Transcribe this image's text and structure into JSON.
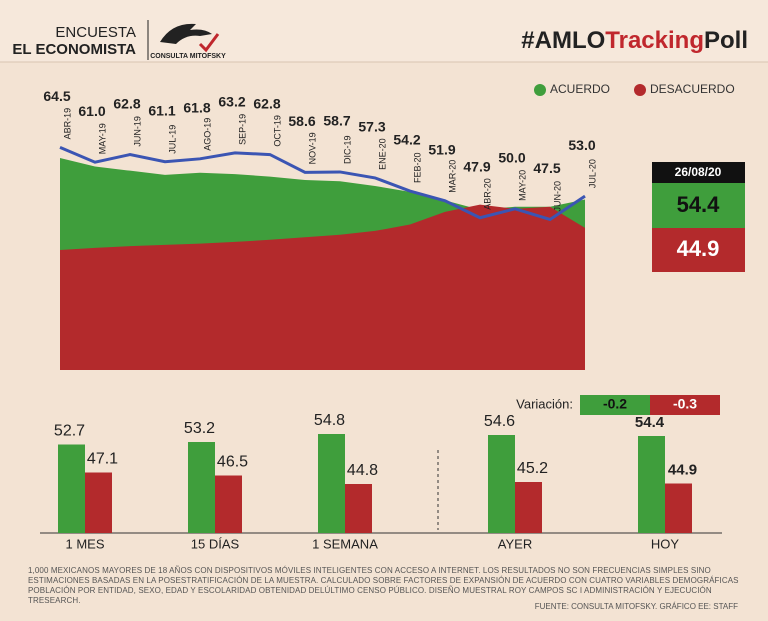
{
  "header": {
    "survey": "ENCUESTA",
    "outlet": "EL ECONOMISTA",
    "pollster": "CONSULTA MITOFSKY",
    "hashtag_prefix": "#AMLO",
    "hashtag_mid": "Tracking",
    "hashtag_suffix": "Poll"
  },
  "chart_data": [
    {
      "type": "area",
      "categories": [
        "ABR-19",
        "MAY-19",
        "JUN-19",
        "JUL-19",
        "AGO-19",
        "SEP-19",
        "OCT-19",
        "NOV-19",
        "DIC-19",
        "ENE-20",
        "FEB-20",
        "MAR-20",
        "ABR-20",
        "MAY-20",
        "JUN-20",
        "JUL-20"
      ],
      "series": [
        {
          "name": "ACUERDO",
          "color": "#3f9e3c",
          "values": [
            62,
            60,
            59,
            58,
            58.5,
            58.2,
            57.6,
            56.8,
            56.5,
            55.4,
            54,
            52,
            49.8,
            50.5,
            50.5,
            52.2
          ]
        },
        {
          "name": "DESACUERDO",
          "color": "#b32a2c",
          "values": [
            40.3,
            40.8,
            41.2,
            41.5,
            41.8,
            42.2,
            42.7,
            43.3,
            43.9,
            44.8,
            46.3,
            49.3,
            51,
            50,
            50.5,
            45.5
          ]
        }
      ],
      "trend": {
        "color": "#3b55b3",
        "values": [
          64.5,
          61.0,
          62.8,
          61.1,
          61.8,
          63.2,
          62.8,
          58.6,
          58.7,
          57.3,
          54.2,
          51.9,
          47.9,
          50.0,
          47.5,
          53.0
        ],
        "value_labels": [
          "64.5",
          "61.0",
          "62.8",
          "61.1",
          "61.8",
          "63.2",
          "62.8",
          "58.6",
          "58.7",
          "57.3",
          "54.2",
          "51.9",
          "47.9",
          "50.0",
          "47.5",
          "53.0"
        ]
      },
      "ylim": [
        12,
        66
      ],
      "current": {
        "date": "26/08/20",
        "acuerdo": 54.4,
        "desacuerdo": 44.9
      }
    },
    {
      "type": "bar",
      "categories": [
        "1 MES",
        "15 DÍAS",
        "1 SEMANA",
        "AYER",
        "HOY"
      ],
      "series": [
        {
          "name": "ACUERDO",
          "color": "#3f9e3c",
          "values": [
            52.7,
            53.2,
            54.8,
            54.6,
            54.4
          ]
        },
        {
          "name": "DESACUERDO",
          "color": "#b32a2c",
          "values": [
            47.1,
            46.5,
            44.8,
            45.2,
            44.9
          ]
        }
      ],
      "ylim": [
        35,
        60
      ],
      "variation_label": "Variación:",
      "variation": [
        -0.2,
        -0.3
      ]
    }
  ],
  "footnote": "1,000 MEXICANOS MAYORES DE 18 AÑOS CON DISPOSITIVOS MÓVILES INTELIGENTES CON ACCESO A INTERNET. LOS RESULTADOS NO SON FRECUENCIAS SIMPLES SINO ESTIMACIONES BASADAS EN LA POSESTRATIFICACIÓN DE LA MUESTRA. CALCULADO SOBRE FACTORES DE EXPANSIÓN DE ACUERDO CON CUATRO VARIABLES DEMOGRÁFICAS POBLACIÓN POR ENTIDAD, SEXO, EDAD Y ESCOLARIDAD OBTENIDAD DELÚLTIMO CENSO PÚBLICO. DISEÑO MUESTRAL ROY CAMPOS SC I ADMINISTRACIÓN Y EJECUCIÓN TRESEARCH.",
  "source": "FUENTE: CONSULTA MITOFSKY. GRÁFICO EE: STAFF"
}
